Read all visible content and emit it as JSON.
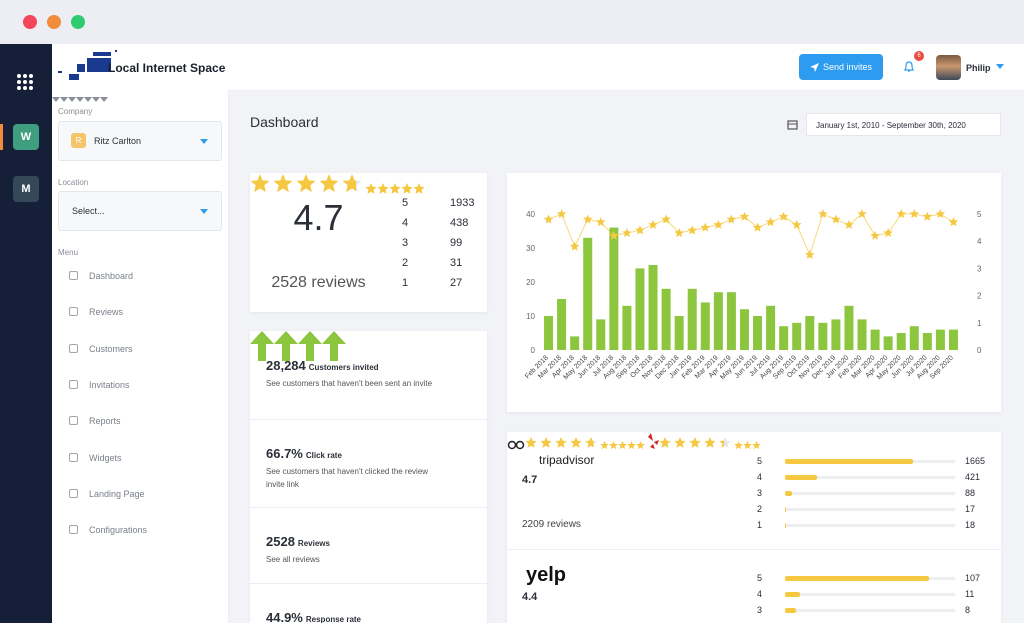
{
  "sidebar": {
    "workspaces": [
      "W",
      "M"
    ]
  },
  "logo": "Local Internet Space",
  "company": {
    "label": "Company",
    "avatar": "R",
    "value": "Ritz Carlton"
  },
  "location": {
    "label": "Location",
    "value": "Select..."
  },
  "menu": {
    "label": "Menu",
    "items": [
      "Dashboard",
      "Reviews",
      "Customers",
      "Invitations",
      "Reports",
      "Widgets",
      "Landing Page",
      "Configurations"
    ]
  },
  "header": {
    "button": "Send invites",
    "notifications": 6,
    "user": "Philip"
  },
  "page": {
    "title": "Dashboard",
    "date_range": "January 1st, 2010 - September 30th, 2020"
  },
  "rating": {
    "score": 4.7,
    "reviews_label": "2528 reviews",
    "breakdown": [
      {
        "stars": 5,
        "count": 1933
      },
      {
        "stars": 4,
        "count": 438
      },
      {
        "stars": 3,
        "count": 99
      },
      {
        "stars": 2,
        "count": 31
      },
      {
        "stars": 1,
        "count": 27
      }
    ]
  },
  "stats": [
    {
      "value": "28,284",
      "label": "Customers invited",
      "description": "See customers that haven't been sent an invite"
    },
    {
      "value": "66.7%",
      "label": "Click rate",
      "description": "See customers that haven't clicked the review invite link"
    },
    {
      "value": "2528",
      "label": "Reviews",
      "description": "See all reviews"
    },
    {
      "value": "44.9%",
      "label": "Response rate"
    }
  ],
  "chart_data": {
    "type": "bar",
    "categories": [
      "Feb 2018",
      "Mar 2018",
      "Apr 2018",
      "May 2018",
      "Jun 2018",
      "Jul 2018",
      "Aug 2018",
      "Sep 2018",
      "Oct 2018",
      "Nov 2018",
      "Dec 2018",
      "Jan 2019",
      "Feb 2019",
      "Mar 2019",
      "Apr 2019",
      "May 2019",
      "Jun 2019",
      "Jul 2019",
      "Aug 2019",
      "Sep 2019",
      "Oct 2019",
      "Nov 2019",
      "Dec 2019",
      "Jan 2020",
      "Feb 2020",
      "Mar 2020",
      "Apr 2020",
      "May 2020",
      "Jun 2020",
      "Jul 2020",
      "Aug 2020",
      "Sep 2020"
    ],
    "series": [
      {
        "type": "bar",
        "color": "#8cc63f",
        "values": [
          10,
          15,
          4,
          33,
          9,
          36,
          13,
          24,
          25,
          18,
          10,
          18,
          14,
          17,
          17,
          12,
          10,
          13,
          7,
          8,
          10,
          8,
          9,
          13,
          9,
          6,
          4,
          5,
          7,
          5,
          6,
          6
        ]
      },
      {
        "type": "line",
        "color": "#f5c842",
        "axis": "y2",
        "values": [
          4.8,
          5,
          3.8,
          4.8,
          4.7,
          4.2,
          4.3,
          4.4,
          4.6,
          4.8,
          4.3,
          4.4,
          4.5,
          4.6,
          4.8,
          4.9,
          4.5,
          4.7,
          4.9,
          4.6,
          3.5,
          5,
          4.8,
          4.6,
          5,
          4.2,
          4.3,
          5,
          5,
          4.9,
          5,
          4.7
        ]
      }
    ],
    "ylim": [
      0,
      40
    ],
    "yticks": [
      0,
      10,
      20,
      30,
      40
    ],
    "y2lim": [
      0,
      5
    ],
    "y2ticks": [
      0,
      1,
      2,
      3,
      4,
      5
    ]
  },
  "platforms": [
    {
      "name": "tripadvisor",
      "rating": 4.7,
      "reviews_label": "2209 reviews",
      "breakdown": [
        {
          "stars": 5,
          "count": 1665
        },
        {
          "stars": 4,
          "count": 421
        },
        {
          "stars": 3,
          "count": 88
        },
        {
          "stars": 2,
          "count": 17
        },
        {
          "stars": 1,
          "count": 18
        }
      ]
    },
    {
      "name": "yelp",
      "rating": 4.4,
      "breakdown": [
        {
          "stars": 5,
          "count": 107
        },
        {
          "stars": 4,
          "count": 11
        },
        {
          "stars": 3,
          "count": 8
        }
      ]
    }
  ]
}
